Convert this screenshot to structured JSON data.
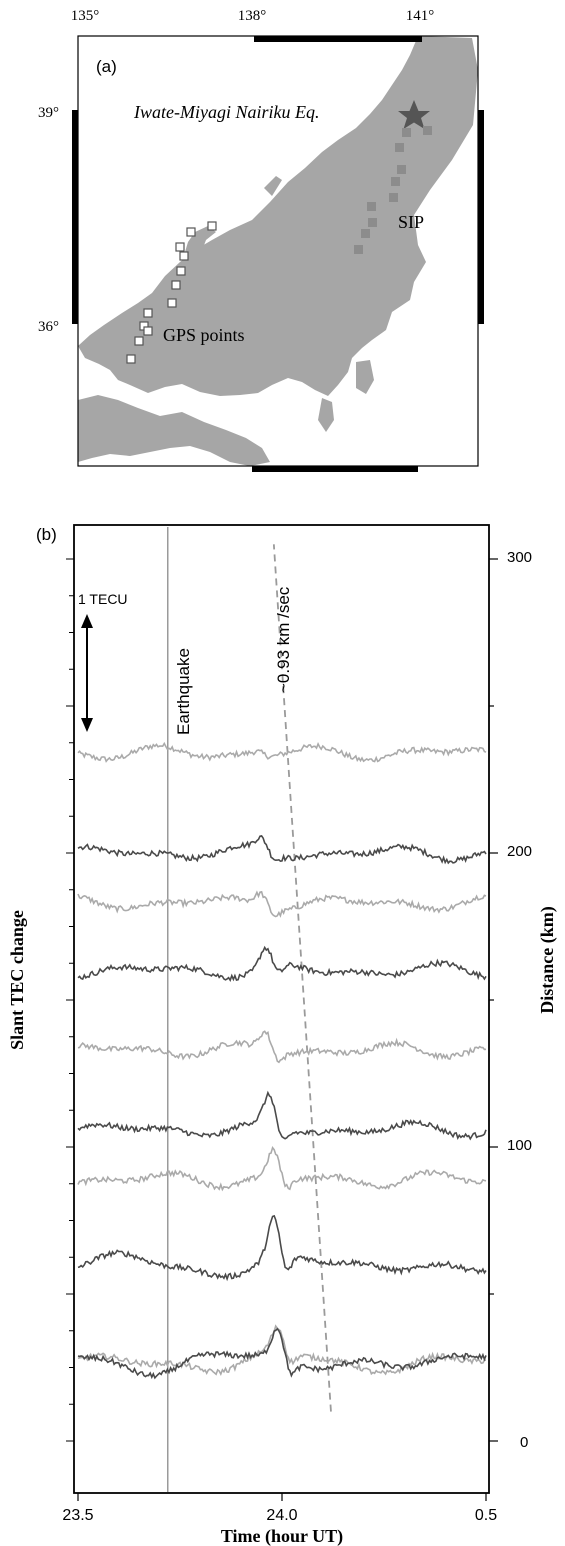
{
  "panel_a": {
    "label": "(a)",
    "lon_ticks": [
      "135°",
      "138°",
      "141°"
    ],
    "lat_ticks": [
      "39°",
      "36°"
    ],
    "earthquake_label": "Iwate-Miyagi Nairiku Eq.",
    "sip_label": "SIP",
    "gps_label": "GPS points",
    "land_color": "#a6a6a6",
    "sip_color": "#8c8c8c",
    "star_color": "#555555"
  },
  "panel_b": {
    "label": "(b)",
    "scale_label": "1 TECU",
    "earthquake_label": "Earthquake",
    "speed_label": "~0.93 km /sec",
    "ylabel_left": "Slant TEC change",
    "ylabel_right": "Distance (km)",
    "xlabel": "Time (hour UT)",
    "x_ticks": [
      "23.5",
      "24.0",
      "0.5"
    ],
    "y_ticks": [
      "300",
      "200",
      "100",
      "0"
    ]
  },
  "chart_data": {
    "type": "line",
    "title": "",
    "xlabel": "Time (hour UT)",
    "ylabel": "Slant TEC change",
    "ylabel_right": "Distance (km)",
    "x_tick_labels": [
      "23.5",
      "24.0",
      "0.5"
    ],
    "xlim": [
      23.5,
      24.5
    ],
    "ylim_right": [
      -10,
      312
    ],
    "earthquake_time": 23.72,
    "propagation_speed": "~0.93 km /sec",
    "propagation_line": {
      "t": [
        24.12,
        23.98
      ],
      "distance_km": [
        10,
        305
      ]
    },
    "scale_bar_tecu": 1,
    "series": [
      {
        "distance_km": 234,
        "shade": "light",
        "arrival": 23.94,
        "amp": 0.05
      },
      {
        "distance_km": 200,
        "shade": "dark",
        "arrival": 23.95,
        "amp": 0.18
      },
      {
        "distance_km": 183,
        "shade": "light",
        "arrival": 23.95,
        "amp": 0.2
      },
      {
        "distance_km": 160,
        "shade": "dark",
        "arrival": 23.96,
        "amp": 0.3
      },
      {
        "distance_km": 133,
        "shade": "light",
        "arrival": 23.96,
        "amp": 0.28
      },
      {
        "distance_km": 106,
        "shade": "dark",
        "arrival": 23.97,
        "amp": 0.45
      },
      {
        "distance_km": 89,
        "shade": "light",
        "arrival": 23.98,
        "amp": 0.4
      },
      {
        "distance_km": 60,
        "shade": "dark",
        "arrival": 23.98,
        "amp": 0.6
      },
      {
        "distance_km": 27,
        "shade": "light",
        "arrival": 23.99,
        "amp": 0.35
      },
      {
        "distance_km": 27,
        "shade": "dark",
        "arrival": 23.99,
        "amp": 0.45
      }
    ]
  }
}
